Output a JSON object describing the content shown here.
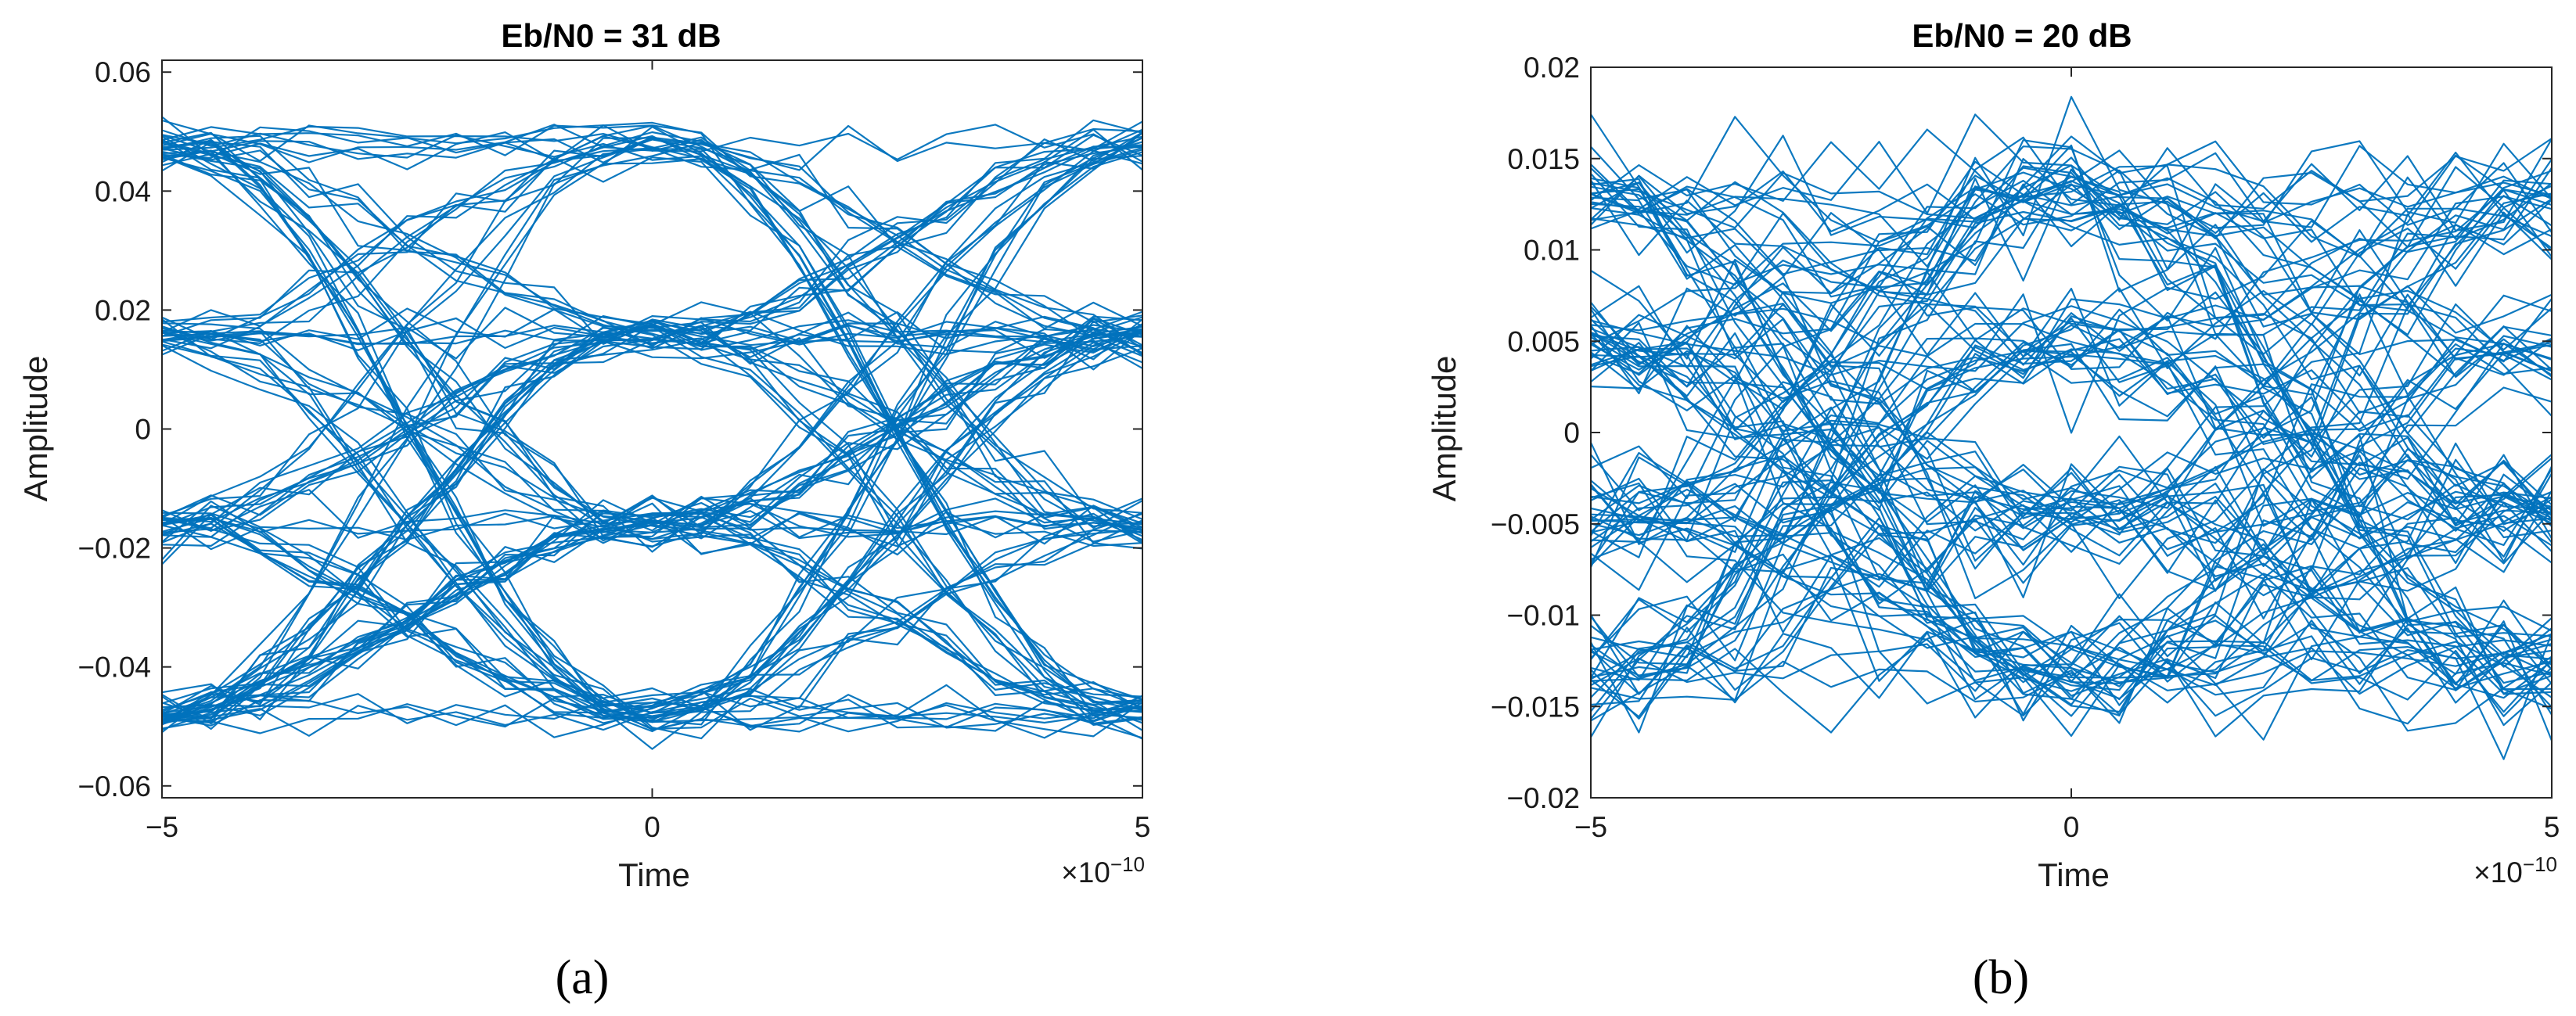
{
  "chart_data": [
    {
      "type": "line",
      "subtype": "eye-diagram",
      "panel_label": "(a)",
      "title": "Eb/N0 = 31 dB",
      "xlabel": "Time",
      "ylabel": "Amplitude",
      "x_exponent_label": "×10",
      "x_exponent_power": "−10",
      "xlim": [
        -5e-10,
        5e-10
      ],
      "ylim": [
        -0.062,
        0.062
      ],
      "xticks": [
        -5,
        0,
        5
      ],
      "xtick_labels": [
        "−5",
        "0",
        "5"
      ],
      "yticks": [
        0.06,
        0.04,
        0.02,
        0,
        -0.02,
        -0.04,
        -0.06
      ],
      "ytick_labels": [
        "0.06",
        "0.04",
        "0.02",
        "0",
        "−0.02",
        "−0.04",
        "−0.06"
      ],
      "grid": false,
      "series_color": "#0072BD",
      "levels": [
        -0.048,
        -0.016,
        0.016,
        0.048
      ],
      "noise_std": 0.002,
      "num_traces": 110,
      "samples_per_trace": 21
    },
    {
      "type": "line",
      "subtype": "eye-diagram",
      "panel_label": "(b)",
      "title": "Eb/N0 = 20 dB",
      "xlabel": "Time",
      "ylabel": "Amplitude",
      "x_exponent_label": "×10",
      "x_exponent_power": "−10",
      "xlim": [
        -5e-10,
        5e-10
      ],
      "ylim": [
        -0.02,
        0.02
      ],
      "xticks": [
        -5,
        0,
        5
      ],
      "xtick_labels": [
        "−5",
        "0",
        "5"
      ],
      "yticks": [
        0.02,
        0.015,
        0.01,
        0.005,
        0,
        -0.005,
        -0.01,
        -0.015,
        -0.02
      ],
      "ytick_labels": [
        "0.02",
        "0.015",
        "0.01",
        "0.005",
        "0",
        "−0.005",
        "−0.01",
        "−0.015",
        "−0.02"
      ],
      "grid": false,
      "series_color": "#0072BD",
      "levels": [
        -0.013,
        -0.0045,
        0.0045,
        0.013
      ],
      "noise_std": 0.0016,
      "num_traces": 110,
      "samples_per_trace": 21
    }
  ]
}
